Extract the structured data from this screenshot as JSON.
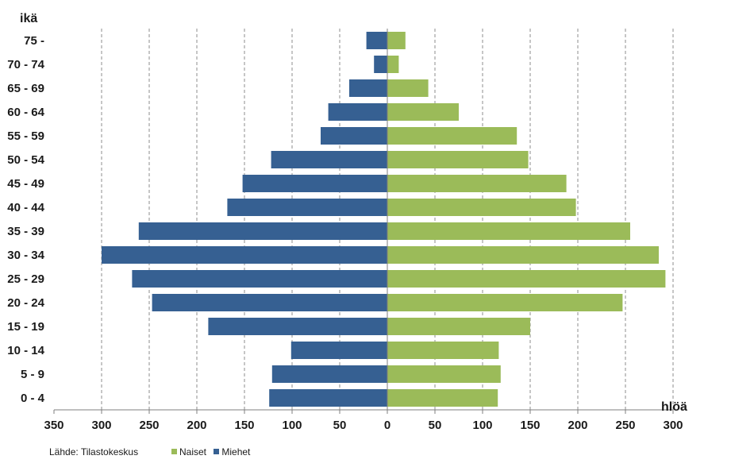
{
  "chart_data": {
    "type": "bar",
    "orientation": "horizontal",
    "ylabel": "ikä",
    "xlabel": "hlöä",
    "source": "Lähde: Tilastokeskus",
    "categories": [
      "0 - 4",
      "5 - 9",
      "10 - 14",
      "15 - 19",
      "20 - 24",
      "25 - 29",
      "30 - 34",
      "35 - 39",
      "40 - 44",
      "45 - 49",
      "50 - 54",
      "55 - 59",
      "60 - 64",
      "65 - 69",
      "70 - 74",
      "75 -"
    ],
    "series": [
      {
        "name": "Naiset",
        "color": "#9bbb59",
        "side": "right",
        "values": [
          116,
          119,
          117,
          150,
          247,
          292,
          285,
          255,
          198,
          188,
          148,
          136,
          75,
          43,
          12,
          19
        ]
      },
      {
        "name": "Miehet",
        "color": "#366092",
        "side": "left",
        "values": [
          124,
          121,
          101,
          188,
          247,
          268,
          300,
          261,
          168,
          152,
          122,
          70,
          62,
          40,
          14,
          22
        ]
      }
    ],
    "xticks": [
      "350",
      "300",
      "250",
      "200",
      "150",
      "100",
      "50",
      "0",
      "50",
      "100",
      "150",
      "200",
      "250",
      "300"
    ],
    "xlim": [
      -350,
      300
    ],
    "grid": "vertical dashed",
    "legend": "bottom-left"
  }
}
